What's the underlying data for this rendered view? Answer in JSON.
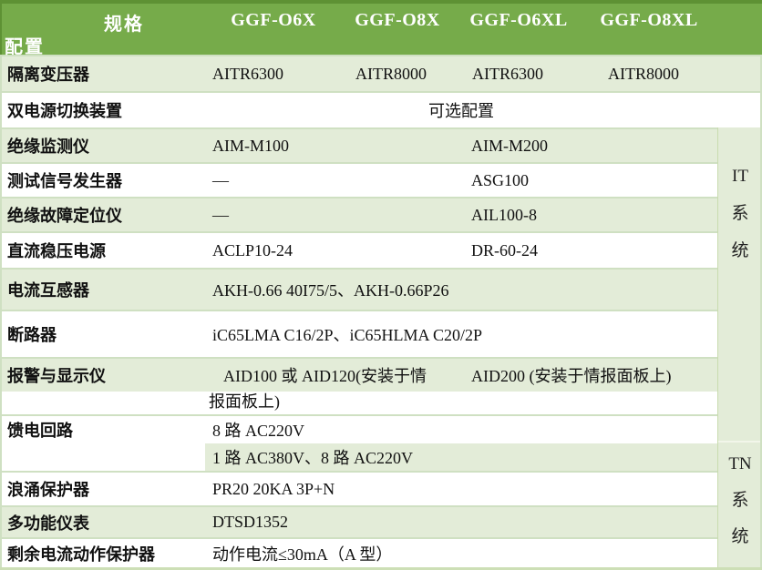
{
  "header": {
    "corner_top": "规格",
    "corner_bottom": "配置",
    "columns": [
      "GGF-O6X",
      "GGF-O8X",
      "GGF-O6XL",
      "GGF-O8XL"
    ]
  },
  "rows": [
    {
      "label": "隔离变压器",
      "values": [
        "AITR6300",
        "AITR8000",
        "AITR6300",
        "AITR8000"
      ]
    },
    {
      "label": "双电源切换装置",
      "value": "可选配置"
    },
    {
      "label": "绝缘监测仪",
      "values": [
        "AIM-M100",
        "AIM-M200"
      ]
    },
    {
      "label": "测试信号发生器",
      "values": [
        "—",
        "ASG100"
      ]
    },
    {
      "label": "绝缘故障定位仪",
      "values": [
        "—",
        "AIL100-8"
      ]
    },
    {
      "label": "直流稳压电源",
      "values": [
        "ACLP10-24",
        "DR-60-24"
      ]
    },
    {
      "label": "电流互感器",
      "value": "AKH-0.66 40I75/5、AKH-0.66P26"
    },
    {
      "label": "断路器",
      "value": "iC65LMA C16/2P、iC65HLMA C20/2P"
    },
    {
      "label": "报警与显示仪",
      "value1_line1": "AID100 或 AID120(安装于情",
      "value1_line2": "报面板上)",
      "value2": "AID200 (安装于情报面板上)"
    },
    {
      "label": "馈电回路",
      "line1": "8 路 AC220V",
      "line2": "1 路 AC380V、8 路 AC220V"
    },
    {
      "label": "浪涌保护器",
      "value": "PR20 20KA 3P+N"
    },
    {
      "label": "多功能仪表",
      "value": "DTSD1352"
    },
    {
      "label": "剩余电流动作保护器",
      "value": "动作电流≤30mA（A 型）"
    }
  ],
  "side": {
    "it": [
      "IT",
      "系",
      "统"
    ],
    "tn": [
      "TN",
      "系",
      "统"
    ]
  },
  "colors": {
    "header_green": "#76AB4A",
    "header_border_green": "#5E9134",
    "row_light_green": "#E3ECD8",
    "grid_line": "#CFE0C2",
    "header_text": "#FFFFFF",
    "body_text": "#111111"
  }
}
